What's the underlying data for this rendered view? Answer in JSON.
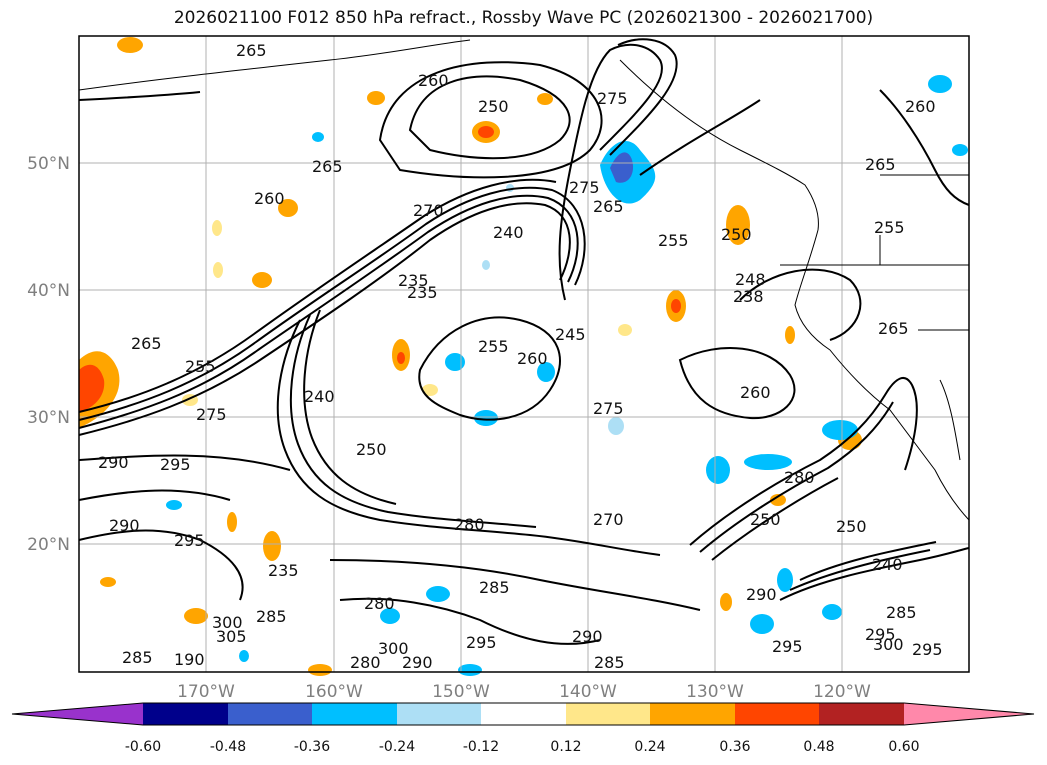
{
  "title": "2026021100 F012 850 hPa refract., Rossby Wave PC (2026021300 - 2026021700)",
  "map": {
    "lat_labels": [
      "50°N",
      "40°N",
      "30°N",
      "20°N"
    ],
    "lon_labels": [
      "170°W",
      "160°W",
      "150°W",
      "140°W",
      "130°W",
      "120°W"
    ],
    "gridlines": true,
    "region": "North-East Pacific",
    "contour_color": "#000000",
    "contour_labels": [
      "265",
      "260",
      "250",
      "275",
      "265",
      "265",
      "260",
      "270",
      "275",
      "265",
      "240",
      "255",
      "250",
      "248",
      "238",
      "260",
      "265",
      "255",
      "255",
      "245",
      "260",
      "265",
      "255",
      "250",
      "260",
      "240",
      "235",
      "235",
      "275",
      "250",
      "280",
      "270",
      "275",
      "280",
      "290",
      "295",
      "290",
      "295",
      "280",
      "285",
      "285",
      "300",
      "295",
      "290",
      "285",
      "290",
      "295",
      "295",
      "300",
      "295",
      "250",
      "240",
      "285",
      "300",
      "305",
      "190",
      "285",
      "290",
      "280",
      "235"
    ]
  },
  "colorbar": {
    "labels": [
      "-0.60",
      "-0.48",
      "-0.36",
      "-0.24",
      "-0.12",
      "0.12",
      "0.24",
      "0.36",
      "0.48",
      "0.60"
    ],
    "colors": [
      "#9932CC",
      "#00008B",
      "#3A5FCD",
      "#00BFFF",
      "#ADDFF5",
      "#FFFFFF",
      "#FFE78A",
      "#FFA500",
      "#FF4500",
      "#B22222",
      "#FF88AA"
    ]
  }
}
